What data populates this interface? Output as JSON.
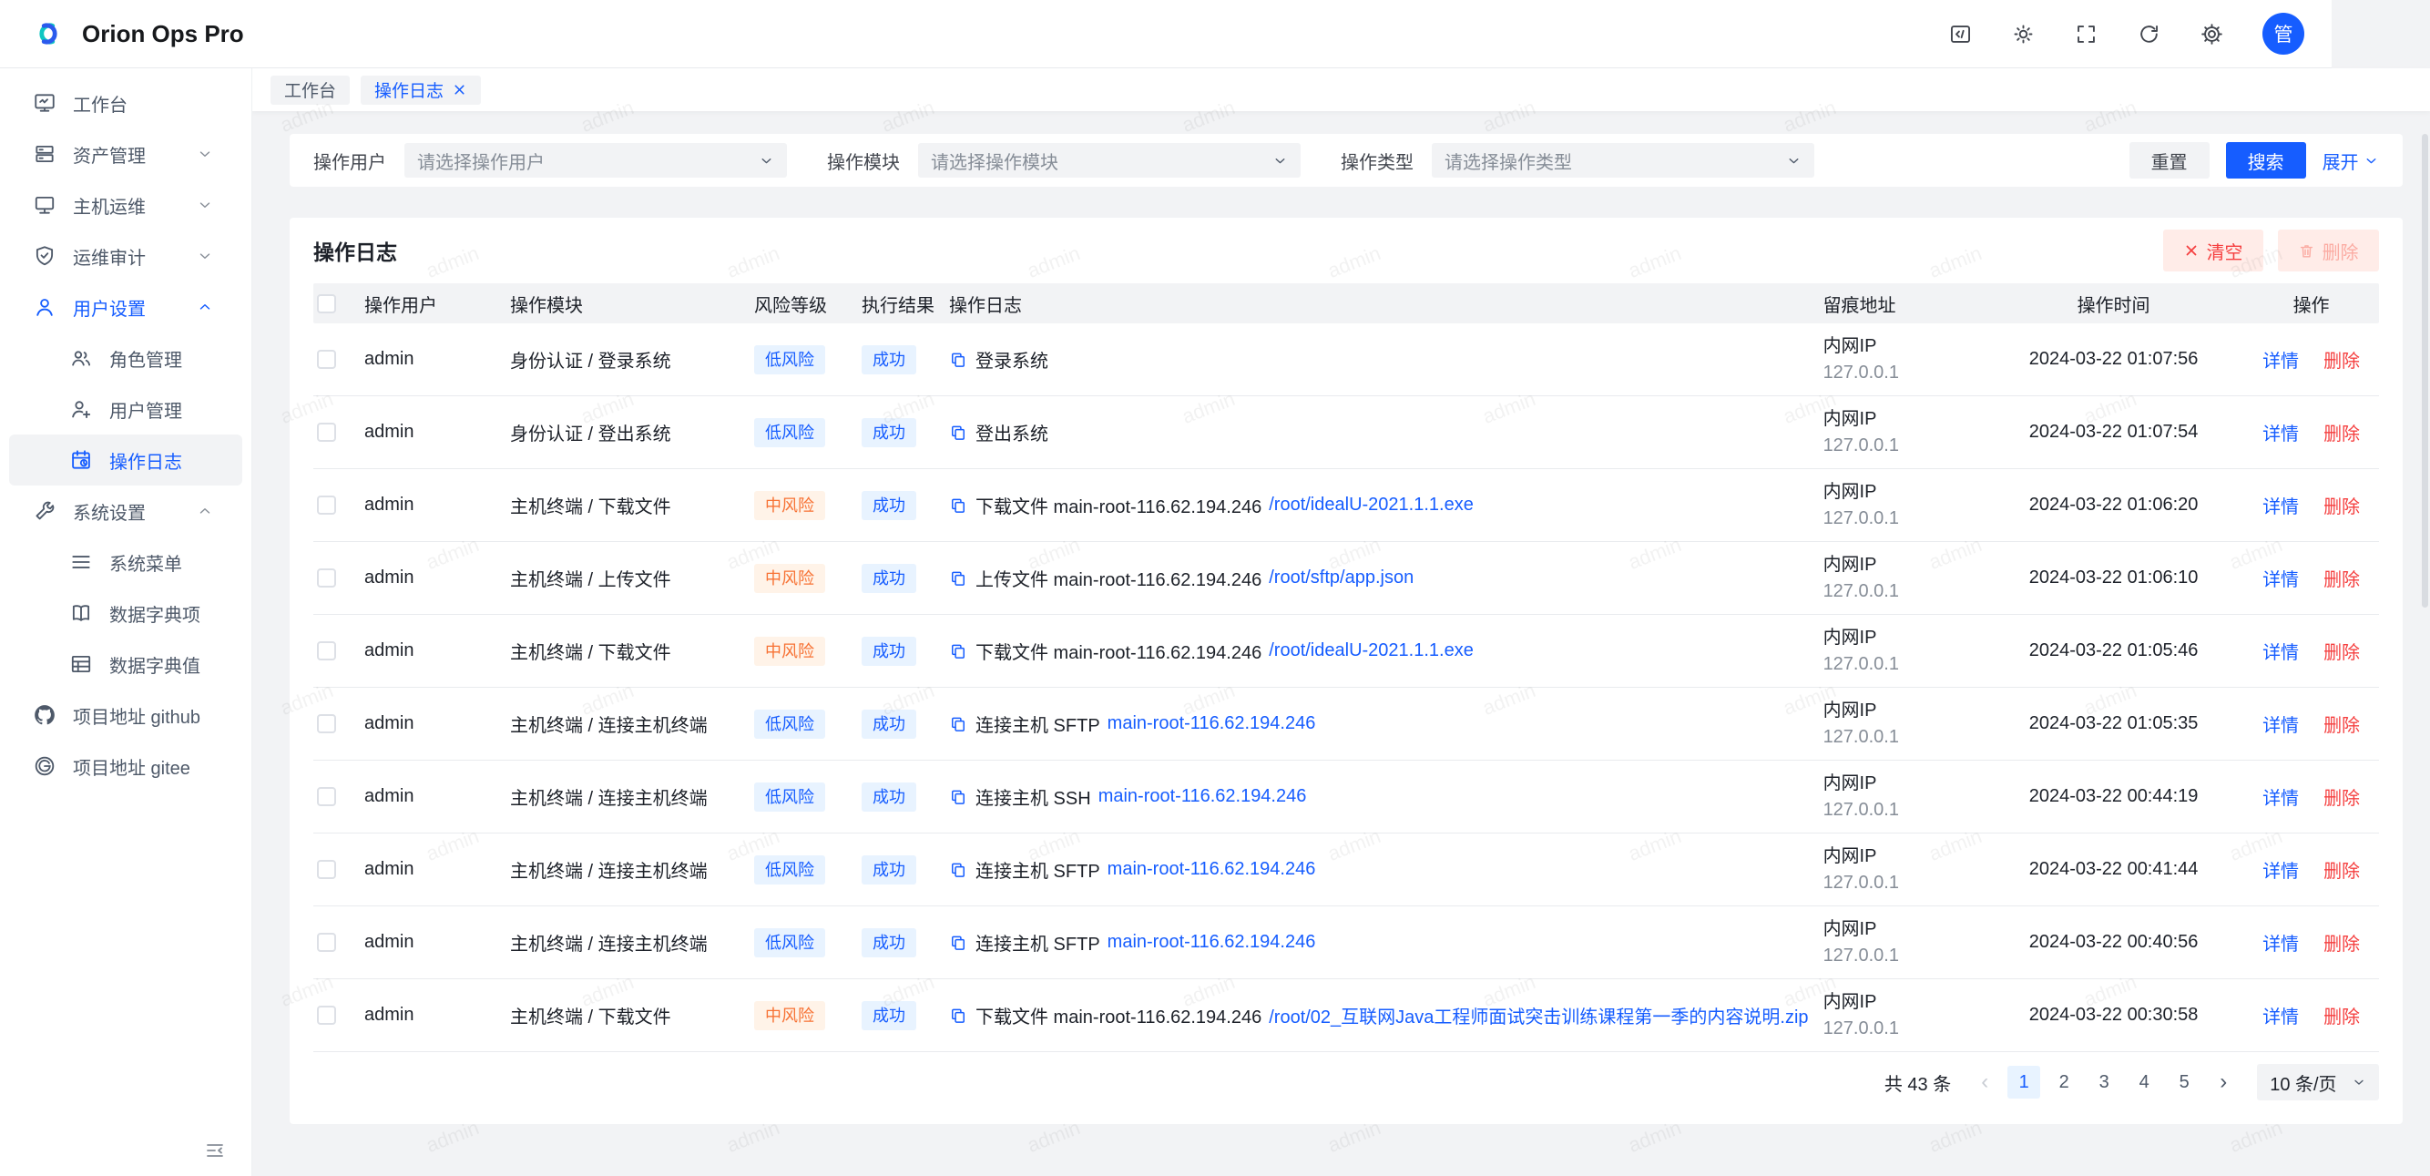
{
  "app": {
    "title": "Orion Ops Pro",
    "avatar": "管"
  },
  "watermark": "admin",
  "colors": {
    "primary": "#165dff",
    "danger": "#f53f3f",
    "warn": "#f77234"
  },
  "sidebar": {
    "items": [
      {
        "label": "工作台",
        "icon": "workbench-icon"
      },
      {
        "label": "资产管理",
        "icon": "assets-icon"
      },
      {
        "label": "主机运维",
        "icon": "host-icon"
      },
      {
        "label": "运维审计",
        "icon": "audit-shield-icon"
      },
      {
        "label": "用户设置",
        "icon": "user-icon"
      },
      {
        "label": "角色管理",
        "icon": "roles-icon"
      },
      {
        "label": "用户管理",
        "icon": "user-add-icon"
      },
      {
        "label": "操作日志",
        "icon": "operation-log-icon"
      },
      {
        "label": "系统设置",
        "icon": "wrench-icon"
      },
      {
        "label": "系统菜单",
        "icon": "menu-lines-icon"
      },
      {
        "label": "数据字典项",
        "icon": "dict-book-icon"
      },
      {
        "label": "数据字典值",
        "icon": "dict-table-icon"
      },
      {
        "label": "项目地址 github",
        "icon": "github-icon"
      },
      {
        "label": "项目地址 gitee",
        "icon": "gitee-icon"
      }
    ]
  },
  "tabs": [
    {
      "label": "工作台"
    },
    {
      "label": "操作日志",
      "active": true,
      "closable": true
    }
  ],
  "filters": {
    "fields": [
      {
        "label": "操作用户",
        "placeholder": "请选择操作用户"
      },
      {
        "label": "操作模块",
        "placeholder": "请选择操作模块"
      },
      {
        "label": "操作类型",
        "placeholder": "请选择操作类型"
      }
    ],
    "reset": "重置",
    "search": "搜索",
    "expand": "展开"
  },
  "table": {
    "title": "操作日志",
    "clear": "清空",
    "delete": "删除",
    "columns": [
      "操作用户",
      "操作模块",
      "风险等级",
      "执行结果",
      "操作日志",
      "留痕地址",
      "操作时间",
      "操作"
    ],
    "action_labels": {
      "detail": "详情",
      "remove": "删除"
    },
    "rows": [
      {
        "user": "admin",
        "module": "身份认证 / 登录系统",
        "risk": "低风险",
        "risk_type": "blue",
        "result": "成功",
        "log_text": "登录系统",
        "log_link": "",
        "addr1": "内网IP",
        "addr2": "127.0.0.1",
        "time": "2024-03-22 01:07:56"
      },
      {
        "user": "admin",
        "module": "身份认证 / 登出系统",
        "risk": "低风险",
        "risk_type": "blue",
        "result": "成功",
        "log_text": "登出系统",
        "log_link": "",
        "addr1": "内网IP",
        "addr2": "127.0.0.1",
        "time": "2024-03-22 01:07:54"
      },
      {
        "user": "admin",
        "module": "主机终端 / 下载文件",
        "risk": "中风险",
        "risk_type": "orange",
        "result": "成功",
        "log_text": "下载文件 main-root-116.62.194.246",
        "log_link": "/root/idealU-2021.1.1.exe",
        "addr1": "内网IP",
        "addr2": "127.0.0.1",
        "time": "2024-03-22 01:06:20"
      },
      {
        "user": "admin",
        "module": "主机终端 / 上传文件",
        "risk": "中风险",
        "risk_type": "orange",
        "result": "成功",
        "log_text": "上传文件 main-root-116.62.194.246",
        "log_link": "/root/sftp/app.json",
        "addr1": "内网IP",
        "addr2": "127.0.0.1",
        "time": "2024-03-22 01:06:10"
      },
      {
        "user": "admin",
        "module": "主机终端 / 下载文件",
        "risk": "中风险",
        "risk_type": "orange",
        "result": "成功",
        "log_text": "下载文件 main-root-116.62.194.246",
        "log_link": "/root/idealU-2021.1.1.exe",
        "addr1": "内网IP",
        "addr2": "127.0.0.1",
        "time": "2024-03-22 01:05:46"
      },
      {
        "user": "admin",
        "module": "主机终端 / 连接主机终端",
        "risk": "低风险",
        "risk_type": "blue",
        "result": "成功",
        "log_text": "连接主机 SFTP",
        "log_link": "main-root-116.62.194.246",
        "addr1": "内网IP",
        "addr2": "127.0.0.1",
        "time": "2024-03-22 01:05:35"
      },
      {
        "user": "admin",
        "module": "主机终端 / 连接主机终端",
        "risk": "低风险",
        "risk_type": "blue",
        "result": "成功",
        "log_text": "连接主机 SSH",
        "log_link": "main-root-116.62.194.246",
        "addr1": "内网IP",
        "addr2": "127.0.0.1",
        "time": "2024-03-22 00:44:19"
      },
      {
        "user": "admin",
        "module": "主机终端 / 连接主机终端",
        "risk": "低风险",
        "risk_type": "blue",
        "result": "成功",
        "log_text": "连接主机 SFTP",
        "log_link": "main-root-116.62.194.246",
        "addr1": "内网IP",
        "addr2": "127.0.0.1",
        "time": "2024-03-22 00:41:44"
      },
      {
        "user": "admin",
        "module": "主机终端 / 连接主机终端",
        "risk": "低风险",
        "risk_type": "blue",
        "result": "成功",
        "log_text": "连接主机 SFTP",
        "log_link": "main-root-116.62.194.246",
        "addr1": "内网IP",
        "addr2": "127.0.0.1",
        "time": "2024-03-22 00:40:56"
      },
      {
        "user": "admin",
        "module": "主机终端 / 下载文件",
        "risk": "中风险",
        "risk_type": "orange",
        "result": "成功",
        "log_text": "下载文件 main-root-116.62.194.246",
        "log_link": "/root/02_互联网Java工程师面试突击训练课程第一季的内容说明.zip",
        "addr1": "内网IP",
        "addr2": "127.0.0.1",
        "time": "2024-03-22 00:30:58"
      }
    ]
  },
  "pagination": {
    "total": "共 43 条",
    "prev": "‹",
    "next": "›",
    "pages": [
      "1",
      "2",
      "3",
      "4",
      "5"
    ],
    "active_page": "1",
    "page_size": "10 条/页"
  }
}
